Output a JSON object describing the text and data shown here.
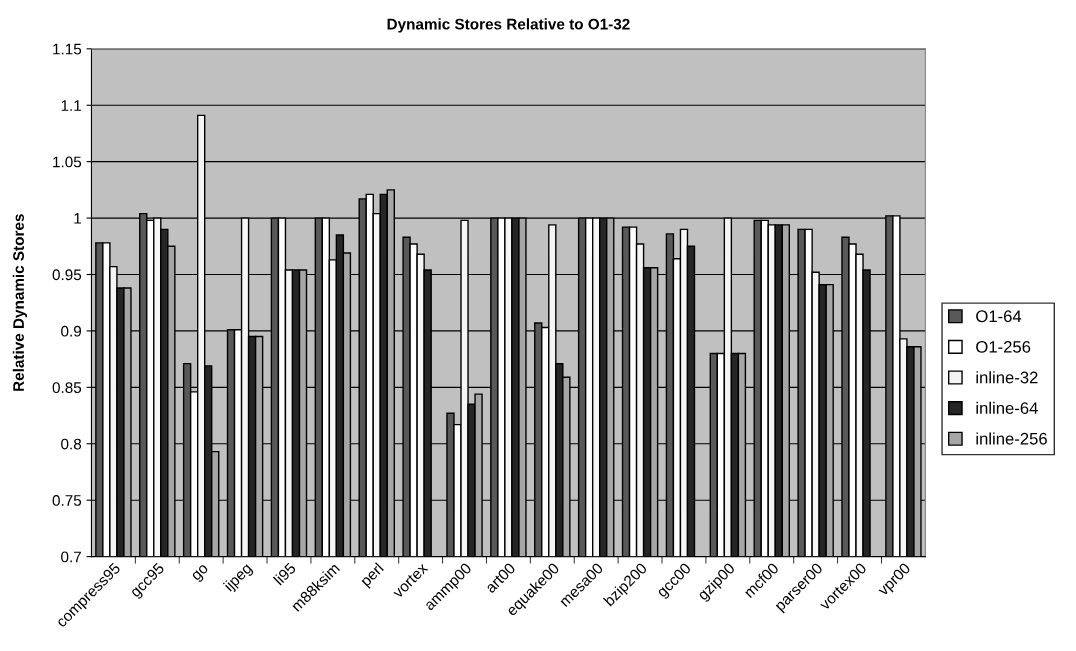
{
  "chart_data": {
    "type": "bar",
    "title": "Dynamic Stores Relative to O1-32",
    "ylabel": "Relative Dynamic Stores",
    "categories": [
      "compress95",
      "gcc95",
      "go",
      "ijpeg",
      "li95",
      "m88ksim",
      "perl",
      "vortex",
      "ammp00",
      "art00",
      "equake00",
      "mesa00",
      "bzip200",
      "gcc00",
      "gzip00",
      "mcf00",
      "parser00",
      "vortex00",
      "vpr00"
    ],
    "series": [
      {
        "name": "O1-64",
        "color": "#595959",
        "values": [
          0.978,
          1.004,
          0.871,
          0.901,
          1.0,
          1.0,
          1.017,
          0.983,
          0.827,
          1.0,
          0.907,
          1.0,
          0.992,
          0.986,
          0.88,
          0.998,
          0.99,
          0.983,
          1.002
        ]
      },
      {
        "name": "O1-256",
        "color": "#ffffff",
        "values": [
          0.978,
          0.998,
          0.846,
          0.901,
          1.0,
          1.0,
          1.021,
          0.977,
          0.817,
          1.0,
          0.903,
          1.0,
          0.992,
          0.964,
          0.88,
          0.998,
          0.99,
          0.977,
          1.002
        ]
      },
      {
        "name": "inline-32",
        "color": "#f5f5f5",
        "values": [
          0.957,
          1.0,
          1.091,
          1.0,
          0.954,
          0.963,
          1.004,
          0.968,
          0.998,
          1.0,
          0.994,
          1.0,
          0.977,
          0.99,
          1.0,
          0.994,
          0.952,
          0.968,
          0.893
        ]
      },
      {
        "name": "inline-64",
        "color": "#262626",
        "values": [
          0.938,
          0.99,
          0.869,
          0.895,
          0.954,
          0.985,
          1.021,
          0.954,
          0.835,
          1.0,
          0.871,
          1.0,
          0.956,
          0.975,
          0.88,
          0.994,
          0.941,
          0.954,
          0.886
        ]
      },
      {
        "name": "inline-256",
        "color": "#a6a6a6",
        "values": [
          0.938,
          0.975,
          0.793,
          0.895,
          0.954,
          0.969,
          1.025,
          null,
          0.844,
          1.0,
          0.859,
          1.0,
          0.956,
          null,
          0.88,
          0.994,
          0.941,
          null,
          0.886
        ]
      }
    ],
    "ylim": [
      0.7,
      1.15
    ],
    "yticks": [
      0.7,
      0.75,
      0.8,
      0.85,
      0.9,
      0.95,
      1,
      1.05,
      1.1,
      1.15
    ],
    "grid": "y",
    "legend": "right"
  }
}
